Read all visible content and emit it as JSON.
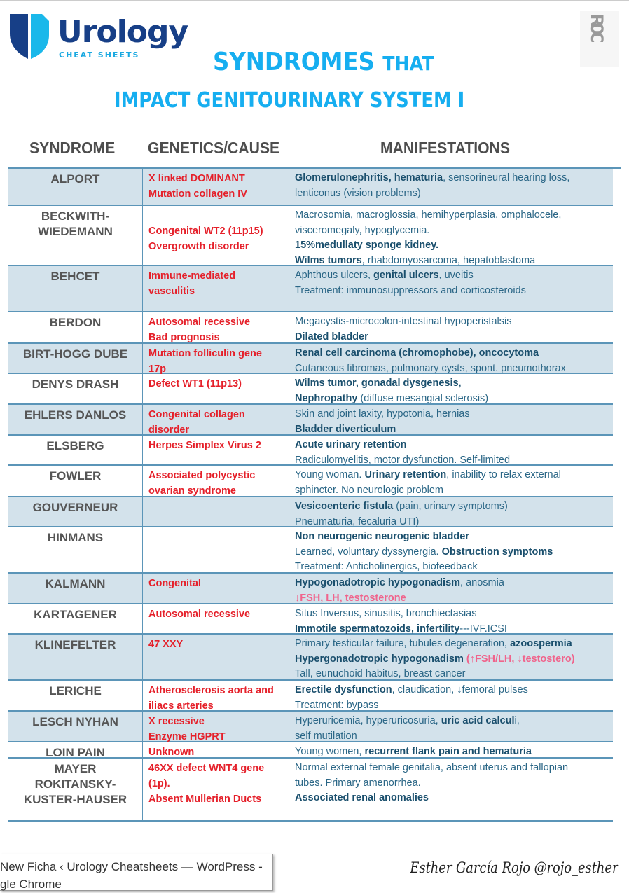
{
  "logo": {
    "word": "Urology",
    "sub": "CHEAT SHEETS"
  },
  "roc_logo": "ROC",
  "title": {
    "line1_big": "SYNDROMES",
    "line1_small": "THAT",
    "line2": "IMPACT GENITOURINARY SYSTEM I"
  },
  "headers": {
    "syndrome": "SYNDROME",
    "cause": "GENETICS/CAUSE",
    "manifestations": "MANIFESTATIONS"
  },
  "colors": {
    "accent": "#16aef0",
    "cause": "#e5202a",
    "shade": "#d3e2eb",
    "border": "#5b95b8",
    "pink": "#f0648c"
  },
  "rows": [
    {
      "name": "ALPORT",
      "h": 53,
      "sh": 1,
      "cause": [
        "X linked DOMINANT",
        "Mutation collagen IV"
      ],
      "man": [
        [
          [
            "b",
            "Glomerulonephritis, hematuria"
          ],
          [
            "n",
            ", sensorineural hearing loss,"
          ]
        ],
        [
          [
            "n",
            "lenticonus (vision problems)"
          ]
        ]
      ]
    },
    {
      "name": "BECKWITH-\nWIEDEMANN",
      "h": 86,
      "sh": 0,
      "cause": [
        "",
        "Congenital WT2 (11p15)",
        "Overgrowth disorder"
      ],
      "man": [
        [
          [
            "n",
            "Macrosomia, macroglossia, hemihyperplasia, omphalocele,"
          ]
        ],
        [
          [
            "n",
            "visceromegaly, hypoglycemia."
          ]
        ],
        [
          [
            "b",
            "15%medullaty sponge kidney."
          ]
        ],
        [
          [
            "b",
            "Wilms tumors"
          ],
          [
            "n",
            ", rhabdomyosarcoma, hepatoblastoma"
          ]
        ]
      ]
    },
    {
      "name": "BEHCET",
      "h": 66,
      "sh": 1,
      "cause": [
        "Immune-mediated",
        "vasculitis"
      ],
      "man": [
        [
          [
            "n",
            "Aphthous ulcers, "
          ],
          [
            "b",
            "genital ulcers"
          ],
          [
            "n",
            ", uveitis"
          ]
        ],
        [
          [
            "n",
            "Treatment: immunosuppressors and corticosteroids"
          ]
        ]
      ]
    },
    {
      "name": "BERDON",
      "h": 45,
      "sh": 0,
      "cause": [
        "Autosomal recessive",
        "Bad prognosis"
      ],
      "man": [
        [
          [
            "n",
            "Megacystis-microcolon-intestinal hypoperistalsis"
          ]
        ],
        [
          [
            "b",
            "Dilated bladder"
          ]
        ]
      ]
    },
    {
      "name": "BIRT-HOGG DUBE",
      "h": 43,
      "sh": 1,
      "cause": [
        "Mutation folliculin gene",
        "17p"
      ],
      "man": [
        [
          [
            "b",
            "Renal cell carcinoma (chromophobe), oncocytoma"
          ]
        ],
        [
          [
            "n",
            "Cutaneous fibromas, pulmonary cysts, spont. pneumothorax"
          ]
        ]
      ]
    },
    {
      "name": "DENYS DRASH",
      "h": 44,
      "sh": 0,
      "cause": [
        "Defect WT1 (11p13)"
      ],
      "man": [
        [
          [
            "b",
            "Wilms tumor, gonadal dysgenesis,"
          ]
        ],
        [
          [
            "b",
            "Nephropathy"
          ],
          [
            "n",
            " (diffuse mesangial sclerosis)"
          ]
        ]
      ]
    },
    {
      "name": "EHLERS DANLOS",
      "h": 44,
      "sh": 1,
      "cause": [
        "Congenital collagen",
        "disorder"
      ],
      "man": [
        [
          [
            "n",
            "Skin and joint laxity, hypotonia, hernias"
          ]
        ],
        [
          [
            "b",
            "Bladder diverticulum"
          ]
        ]
      ]
    },
    {
      "name": "ELSBERG",
      "h": 43,
      "sh": 0,
      "cause": [
        "Herpes Simplex Virus 2"
      ],
      "man": [
        [
          [
            "b",
            "Acute urinary retention"
          ]
        ],
        [
          [
            "n",
            "Radiculomyelitis, motor dysfunction. Self-limited"
          ]
        ]
      ]
    },
    {
      "name": "FOWLER",
      "h": 45,
      "sh": 0,
      "cause": [
        "Associated polycystic",
        "ovarian syndrome"
      ],
      "man": [
        [
          [
            "n",
            "Young woman. "
          ],
          [
            "b",
            "Urinary retention"
          ],
          [
            "n",
            ", inability to relax external"
          ]
        ],
        [
          [
            "n",
            "sphincter. No neurologic problem"
          ]
        ]
      ]
    },
    {
      "name": "GOUVERNEUR",
      "h": 43,
      "sh": 1,
      "cause": [],
      "man": [
        [
          [
            "b",
            "Vesicoenteric fistula"
          ],
          [
            "n",
            " (pain, urinary symptoms)"
          ]
        ],
        [
          [
            "n",
            "Pneumaturia, fecaluria UTI)"
          ]
        ]
      ]
    },
    {
      "name": "HINMANS",
      "h": 66,
      "sh": 0,
      "cause": [],
      "man": [
        [
          [
            "b",
            "Non neurogenic neurogenic bladder"
          ]
        ],
        [
          [
            "n",
            "Learned, voluntary dyssynergia. "
          ],
          [
            "b",
            "Obstruction symptoms"
          ]
        ],
        [
          [
            "n",
            "Treatment: Anticholinergics, biofeedback"
          ]
        ]
      ]
    },
    {
      "name": "KALMANN",
      "h": 44,
      "sh": 1,
      "cause": [
        "Congenital"
      ],
      "man": [
        [
          [
            "b",
            "Hypogonadotropic hypogonadism"
          ],
          [
            "n",
            ", anosmia"
          ]
        ],
        [
          [
            "p",
            "↓FSH, LH, testosterone"
          ]
        ]
      ]
    },
    {
      "name": "KARTAGENER",
      "h": 43,
      "sh": 0,
      "cause": [
        "Autosomal recessive"
      ],
      "man": [
        [
          [
            "n",
            "Situs Inversus, sinusitis, bronchiectasias"
          ]
        ],
        [
          [
            "b",
            "Immotile spermatozoids, infertility"
          ],
          [
            "n",
            "---IVF.ICSI"
          ]
        ]
      ]
    },
    {
      "name": "KLINEFELTER",
      "h": 66,
      "sh": 1,
      "cause": [
        "47 XXY"
      ],
      "man": [
        [
          [
            "n",
            "Primary testicular failure, tubules degeneration, "
          ],
          [
            "b",
            "azoospermia"
          ]
        ],
        [
          [
            "b",
            "Hypergonadotropic hypogonadism "
          ],
          [
            "p",
            "(↑FSH/LH, ↓testostero)"
          ]
        ],
        [
          [
            "n",
            "Tall, eunuchoid habitus, breast cancer"
          ]
        ]
      ]
    },
    {
      "name": "LERICHE",
      "h": 44,
      "sh": 0,
      "cause": [
        "Atherosclerosis aorta and",
        "iliacs arteries"
      ],
      "man": [
        [
          [
            "b",
            "Erectile dysfunction"
          ],
          [
            "n",
            ", claudication, ↓femoral pulses"
          ]
        ],
        [
          [
            "n",
            "Treatment: bypass"
          ]
        ]
      ]
    },
    {
      "name": "LESCH NYHAN",
      "h": 44,
      "sh": 1,
      "cause": [
        "X recessive",
        "Enzyme HGPRT"
      ],
      "man": [
        [
          [
            "n",
            "Hyperuricemia, hyperuricosuria, "
          ],
          [
            "b",
            "uric acid calcul"
          ],
          [
            "n",
            "i,"
          ]
        ],
        [
          [
            "n",
            "self mutilation"
          ]
        ]
      ]
    },
    {
      "name": "LOIN PAIN",
      "h": 23,
      "sh": 0,
      "cause": [
        "Unknown"
      ],
      "man": [
        [
          [
            "n",
            "Young women, "
          ],
          [
            "b",
            "recurrent flank pain and hematuria"
          ]
        ]
      ]
    },
    {
      "name": "MAYER\nROKITANSKY-\nKUSTER-HAUSER",
      "h": 90,
      "sh": 0,
      "cause": [
        "46XX defect WNT4 gene",
        "(1p).",
        "Absent Mullerian Ducts"
      ],
      "man": [
        [
          [
            "n",
            "Normal external female genitalia, absent uterus and fallopian"
          ]
        ],
        [
          [
            "n",
            "tubes. Primary amenorrhea."
          ]
        ],
        [
          [
            "b",
            "Associated renal anomalies"
          ]
        ]
      ]
    }
  ],
  "taskbar_tooltip": [
    "New Ficha ‹ Urology Cheatsheets — WordPress -",
    "gle Chrome"
  ],
  "signature": "Esther García Rojo @rojo_esther"
}
